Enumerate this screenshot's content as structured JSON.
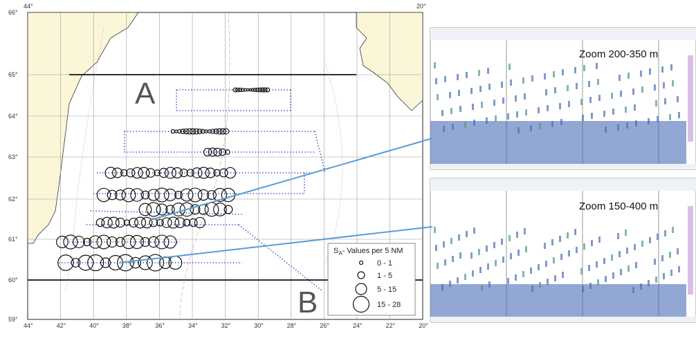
{
  "map": {
    "corner_labels": {
      "top_left": "44°",
      "top_right": "20°"
    },
    "latitude_labels": [
      "66°",
      "65°",
      "64°",
      "63°",
      "62°",
      "61°",
      "60°",
      "59°"
    ],
    "longitude_labels": [
      "44°",
      "42°",
      "40°",
      "38°",
      "36°",
      "34°",
      "32°",
      "30°",
      "28°",
      "26°",
      "24°",
      "22°",
      "20°"
    ],
    "region_labels": [
      "A",
      "B"
    ],
    "legend": {
      "title_symbol": "S",
      "title_subscript": "A",
      "title_rest": "- Values per 5 NM",
      "entries": [
        "0 - 1",
        "1 - 5",
        "5 - 15",
        "15 - 28"
      ]
    }
  },
  "echograms": [
    {
      "label": "Zoom 200-350 m"
    },
    {
      "label": "Zoom 150-400 m"
    }
  ]
}
